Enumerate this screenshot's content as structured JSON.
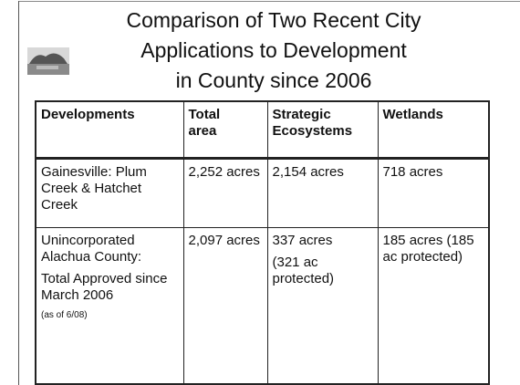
{
  "slide": {
    "title": [
      "Comparison of Two Recent City",
      "Applications to Development",
      "in County since 2006"
    ],
    "table": {
      "headers": [
        [
          "Developments"
        ],
        [
          "Total",
          "area"
        ],
        [
          "Strategic",
          "Ecosystems"
        ],
        [
          "Wetlands"
        ]
      ],
      "rows": [
        [
          [
            "Gainesville: Plum Creek & Hatchet Creek"
          ],
          [
            "2,252 acres"
          ],
          [
            "2,154 acres"
          ],
          [
            "718 acres"
          ]
        ],
        [
          [
            "Unincorporated Alachua County:",
            "Total Approved since March 2006",
            "(as of 6/08)"
          ],
          [
            "2,097 acres"
          ],
          [
            "337 acres",
            "(321 ac protected)"
          ],
          [
            "185 acres (185 ac protected)"
          ]
        ]
      ]
    }
  }
}
